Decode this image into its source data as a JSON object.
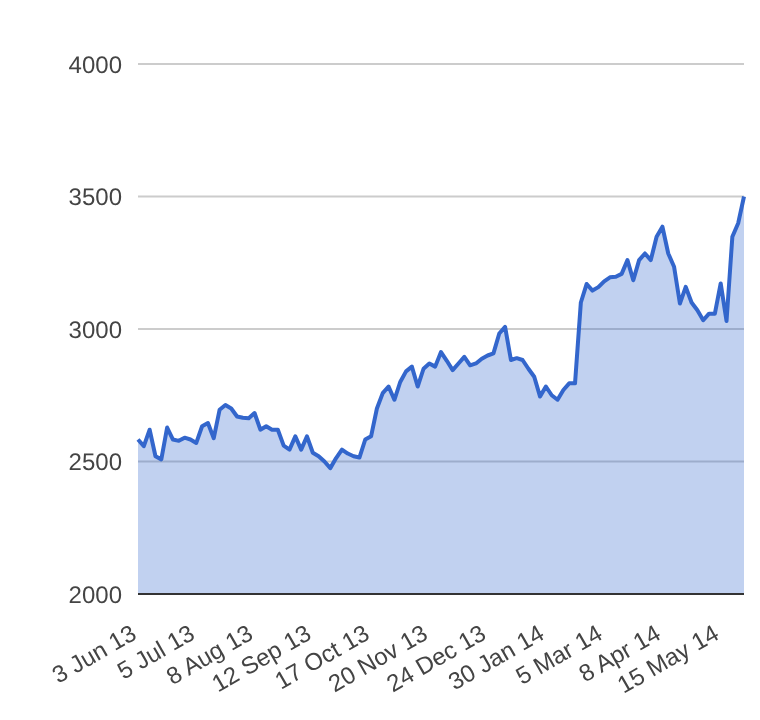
{
  "chart_data": {
    "type": "area",
    "categories": [
      "3 Jun 13",
      null,
      null,
      null,
      null,
      null,
      null,
      null,
      null,
      null,
      "5 Jul 13",
      null,
      null,
      null,
      null,
      null,
      null,
      null,
      null,
      null,
      "8 Aug 13",
      null,
      null,
      null,
      null,
      null,
      null,
      null,
      null,
      null,
      "12 Sep 13",
      null,
      null,
      null,
      null,
      null,
      null,
      null,
      null,
      null,
      "17 Oct 13",
      null,
      null,
      null,
      null,
      null,
      null,
      null,
      null,
      null,
      "20 Nov 13",
      null,
      null,
      null,
      null,
      null,
      null,
      null,
      null,
      null,
      "24 Dec 13",
      null,
      null,
      null,
      null,
      null,
      null,
      null,
      null,
      null,
      "30 Jan 14",
      null,
      null,
      null,
      null,
      null,
      null,
      null,
      null,
      null,
      "5 Mar 14",
      null,
      null,
      null,
      null,
      null,
      null,
      null,
      null,
      null,
      "8 Apr 14",
      null,
      null,
      null,
      null,
      null,
      null,
      null,
      null,
      null,
      "15 May 14",
      null,
      null,
      null,
      null
    ],
    "series": [
      {
        "color": "#3366cc",
        "values": [
          2583,
          2558,
          2620,
          2520,
          2508,
          2628,
          2583,
          2578,
          2590,
          2583,
          2570,
          2633,
          2645,
          2588,
          2695,
          2713,
          2700,
          2670,
          2665,
          2663,
          2683,
          2620,
          2633,
          2620,
          2620,
          2560,
          2545,
          2595,
          2545,
          2595,
          2533,
          2520,
          2500,
          2475,
          2513,
          2545,
          2530,
          2520,
          2515,
          2583,
          2595,
          2700,
          2758,
          2783,
          2733,
          2800,
          2840,
          2858,
          2783,
          2850,
          2870,
          2858,
          2913,
          2880,
          2845,
          2870,
          2895,
          2863,
          2870,
          2888,
          2900,
          2908,
          2983,
          3008,
          2883,
          2890,
          2883,
          2850,
          2820,
          2745,
          2783,
          2750,
          2733,
          2770,
          2795,
          2795,
          3100,
          3170,
          3145,
          3158,
          3180,
          3195,
          3197,
          3208,
          3260,
          3184,
          3260,
          3285,
          3260,
          3348,
          3386,
          3285,
          3235,
          3096,
          3159,
          3100,
          3071,
          3033,
          3058,
          3058,
          3172,
          3030,
          3348,
          3399,
          3500
        ]
      }
    ],
    "ylim": [
      2000,
      4000
    ],
    "yticks": [
      2000,
      2500,
      3000,
      3500,
      4000
    ],
    "grid": "y",
    "legend": false
  }
}
